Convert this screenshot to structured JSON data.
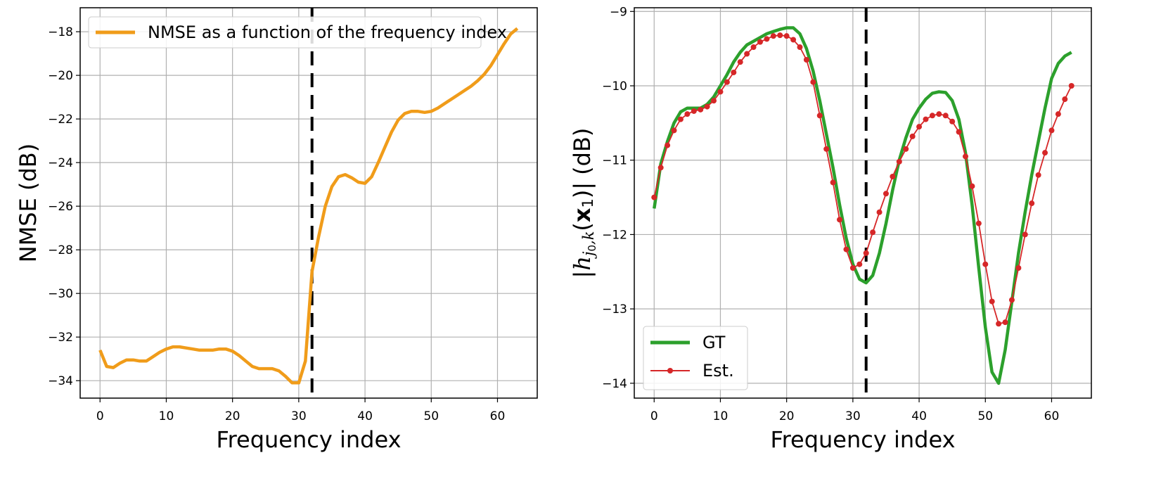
{
  "chart_data": [
    {
      "type": "line",
      "xlabel": "Frequency index",
      "ylabel": "NMSE (dB)",
      "xlim": [
        -3,
        66
      ],
      "ylim": [
        -34.8,
        -16.9
      ],
      "xticks": [
        0,
        10,
        20,
        30,
        40,
        50,
        60
      ],
      "yticks": [
        -34,
        -32,
        -30,
        -28,
        -26,
        -24,
        -22,
        -20,
        -18
      ],
      "grid": true,
      "legend_position": "top-left",
      "vline_x": 32,
      "series": [
        {
          "name": "NMSE as a function of the frequency index",
          "color": "#f09c1a",
          "x": [
            0,
            1,
            2,
            3,
            4,
            5,
            6,
            7,
            8,
            9,
            10,
            11,
            12,
            13,
            14,
            15,
            16,
            17,
            18,
            19,
            20,
            21,
            22,
            23,
            24,
            25,
            26,
            27,
            28,
            29,
            30,
            31,
            32,
            33,
            34,
            35,
            36,
            37,
            38,
            39,
            40,
            41,
            42,
            43,
            44,
            45,
            46,
            47,
            48,
            49,
            50,
            51,
            52,
            53,
            54,
            55,
            56,
            57,
            58,
            59,
            60,
            61,
            62,
            63
          ],
          "values": [
            -32.6,
            -33.35,
            -33.4,
            -33.2,
            -33.05,
            -33.05,
            -33.1,
            -33.1,
            -32.9,
            -32.7,
            -32.55,
            -32.45,
            -32.45,
            -32.5,
            -32.55,
            -32.6,
            -32.6,
            -32.6,
            -32.55,
            -32.55,
            -32.65,
            -32.85,
            -33.1,
            -33.35,
            -33.45,
            -33.45,
            -33.45,
            -33.55,
            -33.8,
            -34.1,
            -34.1,
            -33.1,
            -29.0,
            -27.4,
            -26.0,
            -25.1,
            -24.65,
            -24.55,
            -24.7,
            -24.9,
            -24.95,
            -24.65,
            -24.0,
            -23.3,
            -22.6,
            -22.05,
            -21.75,
            -21.65,
            -21.65,
            -21.7,
            -21.65,
            -21.5,
            -21.3,
            -21.1,
            -20.9,
            -20.7,
            -20.5,
            -20.25,
            -19.95,
            -19.55,
            -19.05,
            -18.55,
            -18.1,
            -17.85
          ]
        }
      ]
    },
    {
      "type": "line",
      "xlabel": "Frequency index",
      "ylabel": "|h_{j0,k}(x1)| (dB)",
      "ylabel_parts": {
        "open": "|",
        "h": "h",
        "sub": "j",
        "sub0": "0",
        "subk": ",k",
        "paren_open": "(",
        "x": "x",
        "xsub": "1",
        "paren_close": ")|",
        "unit": "(dB)"
      },
      "xlim": [
        -3,
        66
      ],
      "ylim": [
        -14.2,
        -8.95
      ],
      "xticks": [
        0,
        10,
        20,
        30,
        40,
        50,
        60
      ],
      "yticks": [
        -14,
        -13,
        -12,
        -11,
        -10,
        -9
      ],
      "grid": true,
      "legend_position": "bottom-left",
      "vline_x": 32,
      "series": [
        {
          "name": "GT",
          "color": "#2ca02c",
          "x": [
            0,
            1,
            2,
            3,
            4,
            5,
            6,
            7,
            8,
            9,
            10,
            11,
            12,
            13,
            14,
            15,
            16,
            17,
            18,
            19,
            20,
            21,
            22,
            23,
            24,
            25,
            26,
            27,
            28,
            29,
            30,
            31,
            32,
            33,
            34,
            35,
            36,
            37,
            38,
            39,
            40,
            41,
            42,
            43,
            44,
            45,
            46,
            47,
            48,
            49,
            50,
            51,
            52,
            53,
            54,
            55,
            56,
            57,
            58,
            59,
            60,
            61,
            62,
            63
          ],
          "values": [
            -11.65,
            -11.05,
            -10.75,
            -10.5,
            -10.35,
            -10.3,
            -10.3,
            -10.3,
            -10.25,
            -10.15,
            -10.0,
            -9.85,
            -9.68,
            -9.55,
            -9.45,
            -9.4,
            -9.35,
            -9.3,
            -9.27,
            -9.24,
            -9.22,
            -9.22,
            -9.3,
            -9.5,
            -9.8,
            -10.2,
            -10.65,
            -11.1,
            -11.6,
            -12.05,
            -12.4,
            -12.6,
            -12.65,
            -12.55,
            -12.25,
            -11.85,
            -11.4,
            -11.0,
            -10.7,
            -10.45,
            -10.3,
            -10.18,
            -10.1,
            -10.08,
            -10.09,
            -10.2,
            -10.45,
            -10.9,
            -11.6,
            -12.45,
            -13.25,
            -13.85,
            -14.0,
            -13.55,
            -12.9,
            -12.25,
            -11.7,
            -11.2,
            -10.75,
            -10.3,
            -9.9,
            -9.7,
            -9.6,
            -9.55
          ]
        },
        {
          "name": "Est.",
          "color": "#d62728",
          "x": [
            0,
            1,
            2,
            3,
            4,
            5,
            6,
            7,
            8,
            9,
            10,
            11,
            12,
            13,
            14,
            15,
            16,
            17,
            18,
            19,
            20,
            21,
            22,
            23,
            24,
            25,
            26,
            27,
            28,
            29,
            30,
            31,
            32,
            33,
            34,
            35,
            36,
            37,
            38,
            39,
            40,
            41,
            42,
            43,
            44,
            45,
            46,
            47,
            48,
            49,
            50,
            51,
            52,
            53,
            54,
            55,
            56,
            57,
            58,
            59,
            60,
            61,
            62,
            63
          ],
          "values": [
            -11.5,
            -11.1,
            -10.8,
            -10.6,
            -10.45,
            -10.38,
            -10.34,
            -10.32,
            -10.28,
            -10.2,
            -10.08,
            -9.95,
            -9.82,
            -9.68,
            -9.57,
            -9.48,
            -9.41,
            -9.37,
            -9.33,
            -9.32,
            -9.33,
            -9.38,
            -9.48,
            -9.65,
            -9.95,
            -10.4,
            -10.85,
            -11.3,
            -11.8,
            -12.2,
            -12.45,
            -12.4,
            -12.25,
            -11.97,
            -11.7,
            -11.45,
            -11.22,
            -11.02,
            -10.85,
            -10.68,
            -10.55,
            -10.45,
            -10.4,
            -10.38,
            -10.4,
            -10.48,
            -10.62,
            -10.95,
            -11.35,
            -11.85,
            -12.4,
            -12.9,
            -13.2,
            -13.18,
            -12.88,
            -12.45,
            -12.0,
            -11.58,
            -11.2,
            -10.9,
            -10.6,
            -10.38,
            -10.18,
            -10.0
          ]
        }
      ]
    }
  ]
}
